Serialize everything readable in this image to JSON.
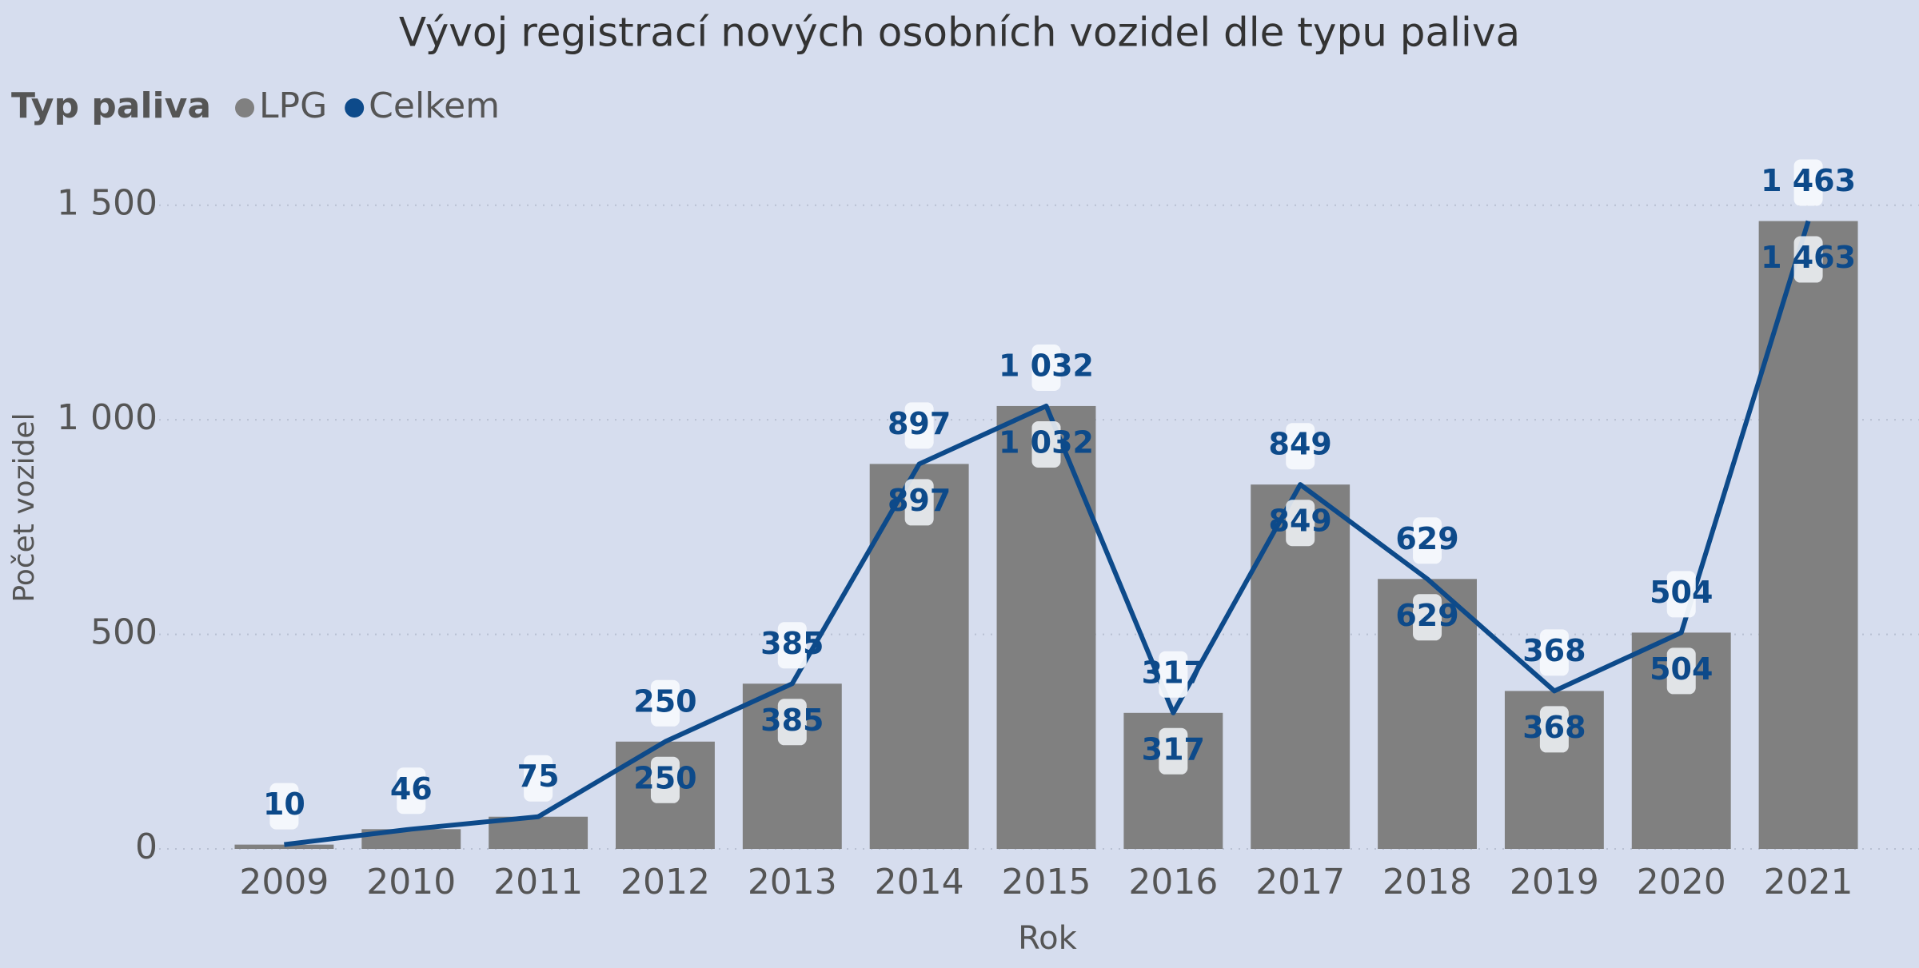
{
  "chart_data": {
    "type": "combo",
    "title": "Vývoj registrací nových osobních vozidel dle typu paliva",
    "legend_title": "Typ paliva",
    "x_label": "Rok",
    "y_label": "Počet vozidel",
    "categories": [
      "2009",
      "2010",
      "2011",
      "2012",
      "2013",
      "2014",
      "2015",
      "2016",
      "2017",
      "2018",
      "2019",
      "2020",
      "2021"
    ],
    "series": [
      {
        "name": "LPG",
        "type": "bar",
        "color": "#808080",
        "values": [
          10,
          46,
          75,
          250,
          385,
          897,
          1032,
          317,
          849,
          629,
          368,
          504,
          1463
        ],
        "value_labels": [
          null,
          null,
          null,
          "250",
          "385",
          "897",
          "1 032",
          "317",
          "849",
          "629",
          "368",
          "504",
          "1 463"
        ]
      },
      {
        "name": "Celkem",
        "type": "line",
        "color": "#0d4a8a",
        "values": [
          10,
          46,
          75,
          250,
          385,
          897,
          1032,
          317,
          849,
          629,
          368,
          504,
          1463
        ],
        "value_labels": [
          "10",
          "46",
          "75",
          "250",
          "385",
          "897",
          "1 032",
          "317",
          "849",
          "629",
          "368",
          "504",
          "1 463"
        ]
      }
    ],
    "ylim": [
      0,
      1600
    ],
    "yticks": [
      0,
      500,
      {
        "value": 1000,
        "label": "1 000"
      },
      {
        "value": 1500,
        "label": "1 500"
      }
    ],
    "grid": true
  }
}
